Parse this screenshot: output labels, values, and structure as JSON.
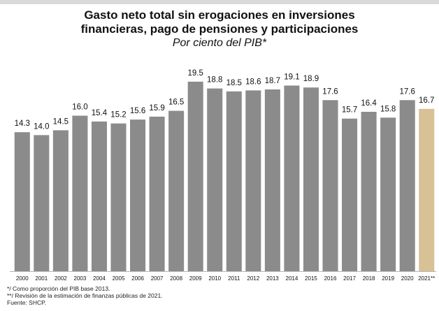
{
  "chart_data": {
    "type": "bar",
    "title_line1": "Gasto neto total sin erogaciones en inversiones",
    "title_line2": "financieras, pago de pensiones y participaciones",
    "subtitle": "Por ciento del PIB*",
    "categories": [
      "2000",
      "2001",
      "2002",
      "2003",
      "2004",
      "2005",
      "2006",
      "2007",
      "2008",
      "2009",
      "2010",
      "2011",
      "2012",
      "2013",
      "2014",
      "2015",
      "2016",
      "2017",
      "2018",
      "2019",
      "2020",
      "2021**"
    ],
    "values": [
      14.3,
      14.0,
      14.5,
      16.0,
      15.4,
      15.2,
      15.6,
      15.9,
      16.5,
      19.5,
      18.8,
      18.5,
      18.6,
      18.7,
      19.1,
      18.9,
      17.6,
      15.7,
      16.4,
      15.8,
      17.6,
      16.7
    ],
    "value_labels": [
      "14.3",
      "14.0",
      "14.5",
      "16.0",
      "15.4",
      "15.2",
      "15.6",
      "15.9",
      "16.5",
      "19.5",
      "18.8",
      "18.5",
      "18.6",
      "18.7",
      "19.1",
      "18.9",
      "17.6",
      "15.7",
      "16.4",
      "15.8",
      "17.6",
      "16.7"
    ],
    "highlight_index": 21,
    "colors": {
      "bar": "#8c8b8c",
      "highlight": "#d7c195",
      "axis": "#b5b5b5",
      "text": "#111111"
    },
    "ylim": [
      0,
      21
    ],
    "grid": false,
    "xlabel": "",
    "ylabel": ""
  },
  "notes": [
    "*/ Como proporción del PIB base 2013.",
    "**/ Revisión de la estimación de finanzas públicas de 2021.",
    "Fuente: SHCP."
  ]
}
